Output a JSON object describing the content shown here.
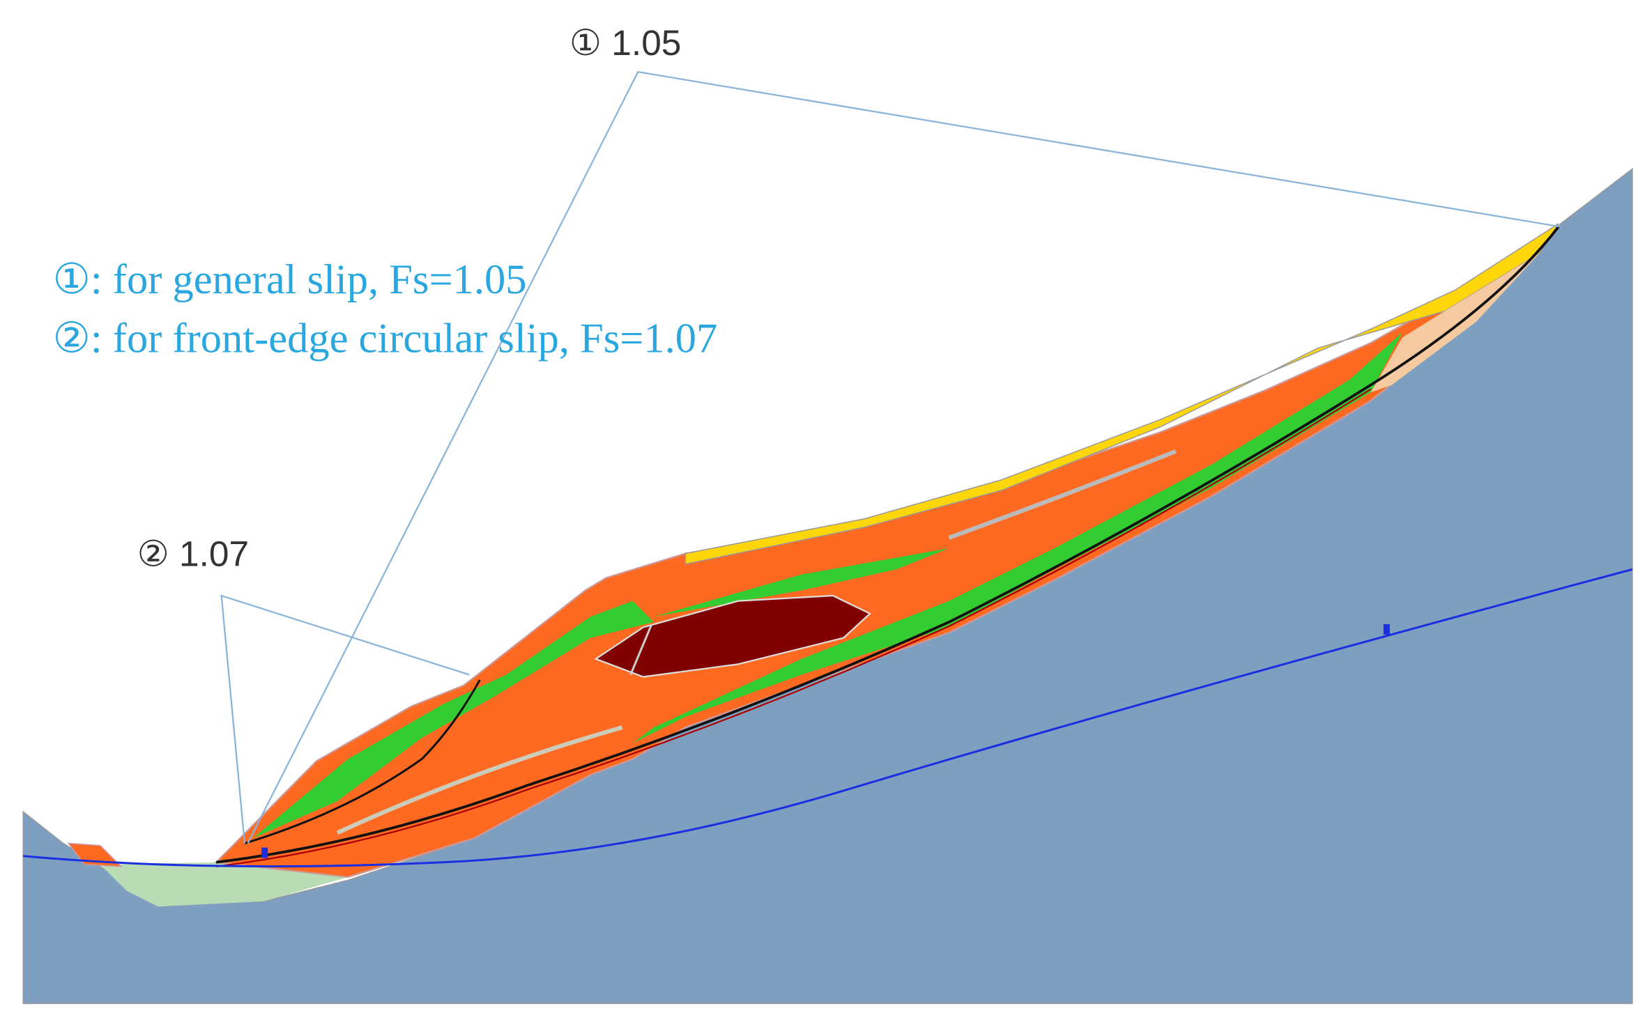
{
  "labels": {
    "slip_1": "① 1.05",
    "slip_2": "② 1.07"
  },
  "legend": [
    "①: for general slip, Fs=1.05",
    "②: for front-edge circular slip, Fs=1.07"
  ]
}
